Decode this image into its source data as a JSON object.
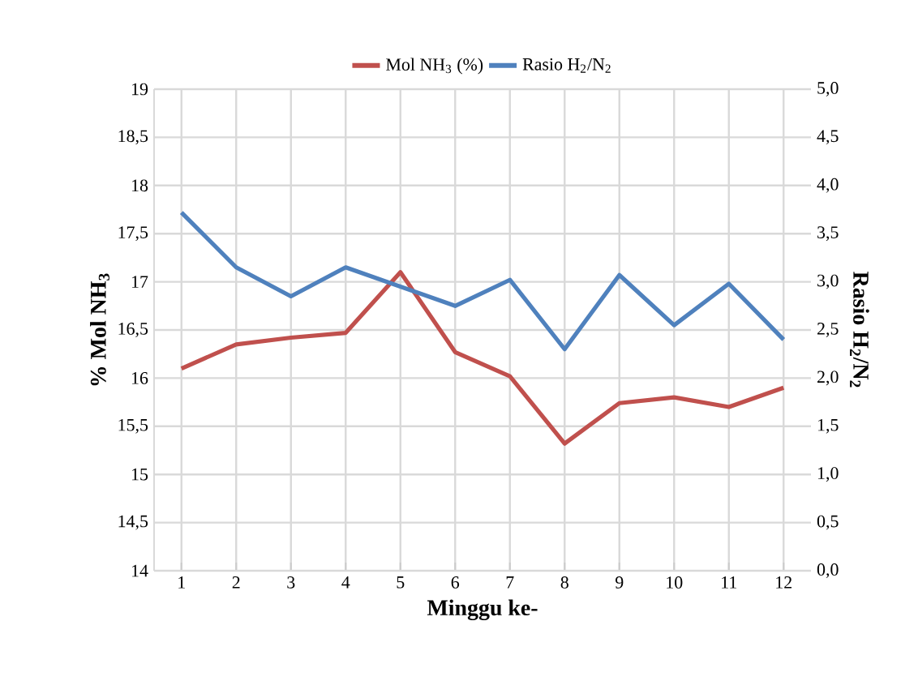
{
  "chart_data": {
    "type": "line",
    "xlabel": "Minggu ke-",
    "ylabel": "% Mol NH$_{3}$",
    "y2label": "Rasio H$_{2}$/N$_{2}$",
    "categories": [
      "1",
      "2",
      "3",
      "4",
      "5",
      "6",
      "7",
      "8",
      "9",
      "10",
      "11",
      "12"
    ],
    "series": [
      {
        "name": "Mol NH$_{3}$ (%)",
        "color": "#c0504d",
        "values": [
          16.1,
          16.35,
          16.42,
          16.47,
          17.1,
          16.27,
          16.02,
          15.32,
          15.74,
          15.8,
          15.7,
          15.9
        ]
      },
      {
        "name": "Rasio H$_{2}$/N$_{2}$",
        "color": "#4f81bd",
        "axis": "y2",
        "values": [
          3.72,
          3.15,
          2.85,
          3.15,
          2.95,
          2.75,
          3.02,
          2.3,
          3.07,
          2.55,
          2.98,
          2.4
        ]
      }
    ],
    "ylim": [
      14,
      19
    ],
    "yticks": [
      14,
      {
        "value": 14.5,
        "label": "14,5"
      },
      15,
      {
        "value": 15.5,
        "label": "15,5"
      },
      16,
      {
        "value": 16.5,
        "label": "16,5"
      },
      17,
      {
        "value": 17.5,
        "label": "17,5"
      },
      18,
      {
        "value": 18.5,
        "label": "18,5"
      },
      19
    ],
    "y2lim": [
      0,
      5
    ],
    "y2ticks": [
      {
        "value": 0,
        "label": "0,0"
      },
      {
        "value": 0.5,
        "label": "0,5"
      },
      {
        "value": 1,
        "label": "1,0"
      },
      {
        "value": 1.5,
        "label": "1,5"
      },
      {
        "value": 2,
        "label": "2,0"
      },
      {
        "value": 2.5,
        "label": "2,5"
      },
      {
        "value": 3,
        "label": "3,0"
      },
      {
        "value": 3.5,
        "label": "3,5"
      },
      {
        "value": 4,
        "label": "4,0"
      },
      {
        "value": 4.5,
        "label": "4,5"
      },
      {
        "value": 5,
        "label": "5,0"
      }
    ],
    "grid": true,
    "legend": "top",
    "marker": "none",
    "line_style": "solid"
  }
}
